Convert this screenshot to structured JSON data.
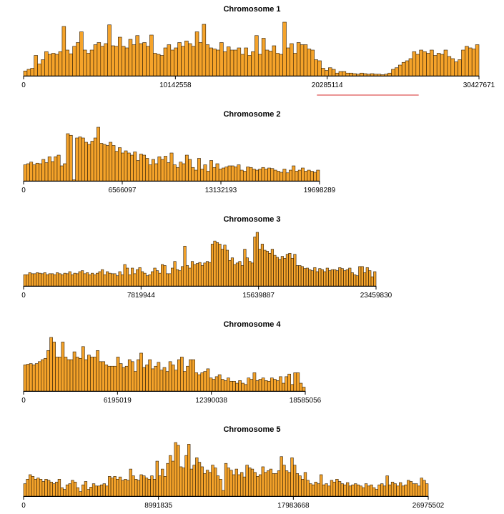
{
  "chart_data": [
    {
      "type": "bar",
      "title": "Chromosome 1",
      "xlim": [
        0,
        30427671
      ],
      "ticks": [
        "0",
        "10142558",
        "20285114",
        "30427671"
      ],
      "tick_values": [
        0,
        10142558,
        20285114,
        30427671
      ],
      "bar_color": "#f5a32a",
      "edge_color": "#2a1a05",
      "highlight": {
        "start": 19600000,
        "end": 26400000,
        "color": "#d42a2a"
      },
      "values": [
        9,
        12,
        14,
        38,
        22,
        30,
        45,
        40,
        42,
        40,
        45,
        92,
        48,
        41,
        55,
        62,
        82,
        48,
        42,
        48,
        58,
        62,
        55,
        60,
        95,
        56,
        55,
        72,
        55,
        52,
        68,
        58,
        75,
        60,
        62,
        55,
        76,
        42,
        40,
        38,
        52,
        58,
        48,
        52,
        62,
        55,
        65,
        60,
        55,
        82,
        62,
        96,
        58,
        52,
        50,
        48,
        62,
        45,
        54,
        48,
        48,
        52,
        40,
        52,
        38,
        45,
        75,
        40,
        70,
        48,
        46,
        56,
        42,
        40,
        100,
        52,
        60,
        42,
        62,
        58,
        58,
        50,
        48,
        30,
        28,
        14,
        10,
        15,
        12,
        5,
        8,
        8,
        5,
        5,
        4,
        3,
        5,
        4,
        3,
        4,
        3,
        3,
        2,
        3,
        5,
        12,
        15,
        20,
        25,
        28,
        32,
        45,
        40,
        48,
        45,
        42,
        48,
        38,
        42,
        40,
        48,
        36,
        32,
        26,
        30,
        48,
        55,
        52,
        50,
        58
      ]
    },
    {
      "type": "bar",
      "title": "Chromosome 2",
      "xlim": [
        0,
        19698289
      ],
      "ticks": [
        "0",
        "6566097",
        "13132193",
        "19698289"
      ],
      "tick_values": [
        0,
        6566097,
        13132193,
        19698289
      ],
      "bar_color": "#f5a32a",
      "edge_color": "#2a1a05",
      "values": [
        30,
        32,
        35,
        30,
        33,
        32,
        40,
        34,
        45,
        36,
        45,
        48,
        28,
        32,
        88,
        85,
        2,
        80,
        82,
        80,
        72,
        68,
        74,
        80,
        100,
        70,
        68,
        66,
        72,
        66,
        55,
        62,
        52,
        56,
        52,
        48,
        54,
        38,
        50,
        48,
        42,
        30,
        40,
        32,
        45,
        40,
        46,
        34,
        52,
        30,
        25,
        35,
        32,
        48,
        40,
        25,
        20,
        42,
        22,
        30,
        18,
        38,
        25,
        32,
        22,
        24,
        26,
        28,
        28,
        26,
        30,
        20,
        18,
        26,
        25,
        22,
        20,
        22,
        25,
        22,
        24,
        23,
        20,
        18,
        16,
        22,
        15,
        20,
        28,
        18,
        20,
        24,
        18,
        20,
        18,
        16,
        20
      ]
    },
    {
      "type": "bar",
      "title": "Chromosome 3",
      "xlim": [
        0,
        23459830
      ],
      "ticks": [
        "0",
        "7819944",
        "15639887",
        "23459830"
      ],
      "tick_values": [
        0,
        7819944,
        15639887,
        23459830
      ],
      "bar_color": "#f5a32a",
      "edge_color": "#2a1a05",
      "values": [
        22,
        22,
        26,
        24,
        24,
        26,
        25,
        24,
        26,
        22,
        24,
        24,
        22,
        26,
        24,
        22,
        25,
        24,
        28,
        22,
        25,
        24,
        28,
        30,
        24,
        26,
        22,
        25,
        22,
        25,
        28,
        32,
        22,
        28,
        25,
        24,
        24,
        20,
        28,
        22,
        42,
        35,
        22,
        35,
        24,
        32,
        36,
        28,
        25,
        20,
        22,
        28,
        35,
        30,
        25,
        42,
        40,
        24,
        24,
        35,
        48,
        32,
        30,
        38,
        78,
        40,
        35,
        48,
        42,
        44,
        46,
        40,
        45,
        48,
        46,
        82,
        88,
        85,
        82,
        72,
        80,
        70,
        50,
        55,
        42,
        45,
        48,
        40,
        72,
        55,
        48,
        45,
        96,
        105,
        72,
        82,
        70,
        68,
        64,
        72,
        60,
        56,
        52,
        58,
        54,
        62,
        64,
        54,
        62,
        40,
        40,
        38,
        34,
        35,
        32,
        30,
        36,
        28,
        34,
        32,
        28,
        35,
        30,
        32,
        32,
        30,
        36,
        34,
        30,
        32,
        35,
        26,
        22,
        20,
        38,
        38,
        26,
        36,
        30,
        18,
        28
      ]
    },
    {
      "type": "bar",
      "title": "Chromosome 4",
      "xlim": [
        0,
        18585056
      ],
      "ticks": [
        "0",
        "6195019",
        "12390038",
        "18585056"
      ],
      "tick_values": [
        0,
        6195019,
        12390038,
        18585056
      ],
      "bar_color": "#f5a32a",
      "edge_color": "#2a1a05",
      "values": [
        40,
        41,
        42,
        40,
        42,
        45,
        48,
        50,
        62,
        82,
        75,
        52,
        52,
        75,
        52,
        48,
        48,
        60,
        52,
        50,
        68,
        48,
        55,
        52,
        52,
        62,
        45,
        45,
        40,
        38,
        38,
        38,
        52,
        42,
        36,
        38,
        48,
        45,
        30,
        48,
        58,
        36,
        40,
        48,
        34,
        38,
        44,
        32,
        36,
        30,
        45,
        40,
        32,
        48,
        52,
        30,
        38,
        48,
        48,
        28,
        25,
        28,
        30,
        34,
        20,
        18,
        22,
        25,
        18,
        16,
        20,
        15,
        15,
        12,
        16,
        12,
        10,
        20,
        18,
        28,
        16,
        18,
        20,
        16,
        15,
        20,
        18,
        16,
        22,
        12,
        22,
        26,
        10,
        28,
        28,
        12,
        6
      ]
    },
    {
      "type": "bar",
      "title": "Chromosome 5",
      "xlim": [
        0,
        26975502
      ],
      "ticks": [
        "0",
        "8991835",
        "17983668",
        "26975502"
      ],
      "tick_values": [
        0,
        8991835,
        17983668,
        26975502
      ],
      "bar_color": "#f5a32a",
      "edge_color": "#2a1a05",
      "values": [
        22,
        30,
        38,
        35,
        30,
        32,
        30,
        26,
        30,
        28,
        25,
        22,
        25,
        30,
        15,
        12,
        20,
        22,
        28,
        25,
        15,
        8,
        20,
        26,
        12,
        16,
        22,
        18,
        18,
        20,
        22,
        18,
        35,
        32,
        35,
        30,
        34,
        28,
        30,
        28,
        48,
        36,
        30,
        28,
        38,
        36,
        32,
        30,
        36,
        30,
        62,
        36,
        48,
        35,
        58,
        72,
        62,
        95,
        90,
        52,
        50,
        72,
        92,
        48,
        55,
        68,
        60,
        52,
        40,
        46,
        42,
        55,
        50,
        36,
        30,
        10,
        58,
        50,
        46,
        38,
        48,
        38,
        42,
        34,
        55,
        50,
        48,
        42,
        35,
        38,
        52,
        42,
        45,
        48,
        40,
        40,
        45,
        70,
        55,
        45,
        42,
        68,
        55,
        40,
        36,
        30,
        42,
        28,
        22,
        20,
        25,
        22,
        38,
        20,
        22,
        18,
        28,
        25,
        30,
        26,
        22,
        20,
        24,
        18,
        20,
        22,
        20,
        18,
        15,
        22,
        18,
        20,
        15,
        12,
        20,
        22,
        18,
        36,
        20,
        25,
        22,
        18,
        24,
        18,
        20,
        28,
        26,
        22,
        22,
        18,
        32,
        28,
        22
      ]
    }
  ]
}
